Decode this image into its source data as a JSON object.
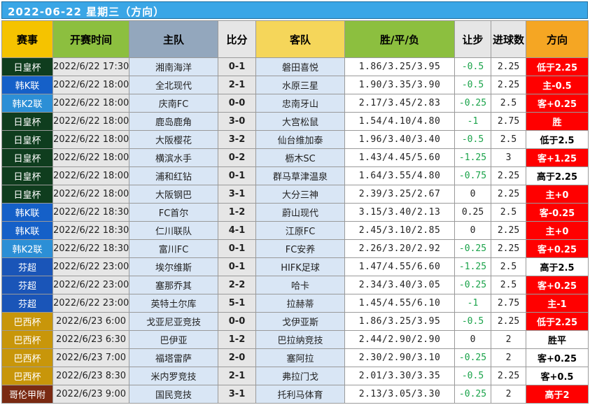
{
  "title": "2022-06-22 星期三（方向）",
  "colors": {
    "league_palette": {
      "日皇杯": "#0f3d1e",
      "韩K联": "#1560c8",
      "韩K2联": "#2c8fd6",
      "芬超": "#1a55b8",
      "巴西杯": "#c8960a",
      "哥伦甲附": "#7a2a12"
    },
    "handicap_negative": "#1aa34a",
    "handicap_other": "#222222",
    "direction_red": "#ff0000",
    "direction_white": "#ffffff"
  },
  "headers": {
    "league": "赛事",
    "time": "开赛时间",
    "home": "主队",
    "score": "比分",
    "away": "客队",
    "odds": "胜/平/负",
    "handicap": "让步",
    "goals": "进球数",
    "direction": "方向"
  },
  "rows": [
    {
      "league": "日皇杯",
      "time": "2022/6/22 17:30",
      "home": "湘南海洋",
      "score": "0-1",
      "away": "磐田喜悦",
      "odds": "1.86/3.25/3.95",
      "handicap": "-0.5",
      "goals": "2.25",
      "direction": "低于2.25",
      "dir_bg": "red"
    },
    {
      "league": "韩K联",
      "time": "2022/6/22 18:00",
      "home": "全北现代",
      "score": "2-1",
      "away": "水原三星",
      "odds": "1.90/3.35/3.90",
      "handicap": "-0.5",
      "goals": "2.25",
      "direction": "主-0.5",
      "dir_bg": "red"
    },
    {
      "league": "韩K2联",
      "time": "2022/6/22 18:00",
      "home": "庆南FC",
      "score": "0-0",
      "away": "忠南牙山",
      "odds": "2.17/3.45/2.83",
      "handicap": "-0.25",
      "goals": "2.5",
      "direction": "客+0.25",
      "dir_bg": "red"
    },
    {
      "league": "日皇杯",
      "time": "2022/6/22 18:00",
      "home": "鹿岛鹿角",
      "score": "3-0",
      "away": "大宫松鼠",
      "odds": "1.54/4.10/4.80",
      "handicap": "-1",
      "goals": "2.75",
      "direction": "胜",
      "dir_bg": "red"
    },
    {
      "league": "日皇杯",
      "time": "2022/6/22 18:00",
      "home": "大阪樱花",
      "score": "3-2",
      "away": "仙台维加泰",
      "odds": "1.96/3.40/3.40",
      "handicap": "-0.5",
      "goals": "2.5",
      "direction": "低于2.5",
      "dir_bg": "white"
    },
    {
      "league": "日皇杯",
      "time": "2022/6/22 18:00",
      "home": "横滨水手",
      "score": "0-2",
      "away": "枥木SC",
      "odds": "1.43/4.45/5.60",
      "handicap": "-1.25",
      "goals": "3",
      "direction": "客+1.25",
      "dir_bg": "red"
    },
    {
      "league": "日皇杯",
      "time": "2022/6/22 18:00",
      "home": "浦和红钻",
      "score": "0-1",
      "away": "群马草津温泉",
      "odds": "1.64/3.55/4.80",
      "handicap": "-0.75",
      "goals": "2.25",
      "direction": "高于2.25",
      "dir_bg": "white"
    },
    {
      "league": "日皇杯",
      "time": "2022/6/22 18:00",
      "home": "大阪钢巴",
      "score": "3-1",
      "away": "大分三神",
      "odds": "2.39/3.25/2.67",
      "handicap": "0",
      "goals": "2.25",
      "direction": "主+0",
      "dir_bg": "red"
    },
    {
      "league": "韩K联",
      "time": "2022/6/22 18:30",
      "home": "FC首尔",
      "score": "1-2",
      "away": "蔚山现代",
      "odds": "3.15/3.40/2.13",
      "handicap": "0.25",
      "goals": "2.5",
      "direction": "客-0.25",
      "dir_bg": "red"
    },
    {
      "league": "韩K联",
      "time": "2022/6/22 18:30",
      "home": "仁川联队",
      "score": "4-1",
      "away": "江原FC",
      "odds": "2.45/3.10/2.85",
      "handicap": "0",
      "goals": "2.25",
      "direction": "主+0",
      "dir_bg": "red"
    },
    {
      "league": "韩K2联",
      "time": "2022/6/22 18:30",
      "home": "富川FC",
      "score": "0-1",
      "away": "FC安养",
      "odds": "2.26/3.20/2.92",
      "handicap": "-0.25",
      "goals": "2.25",
      "direction": "客+0.25",
      "dir_bg": "red"
    },
    {
      "league": "芬超",
      "time": "2022/6/22 23:00",
      "home": "埃尔维斯",
      "score": "0-1",
      "away": "HIFK足球",
      "odds": "1.47/4.55/6.60",
      "handicap": "-1.25",
      "goals": "2.5",
      "direction": "高于2.5",
      "dir_bg": "white"
    },
    {
      "league": "芬超",
      "time": "2022/6/22 23:00",
      "home": "塞那乔其",
      "score": "2-2",
      "away": "哈卡",
      "odds": "2.34/3.40/3.05",
      "handicap": "-0.25",
      "goals": "2.5",
      "direction": "客+0.25",
      "dir_bg": "red"
    },
    {
      "league": "芬超",
      "time": "2022/6/22 23:00",
      "home": "英特土尔库",
      "score": "5-1",
      "away": "拉赫蒂",
      "odds": "1.45/4.55/6.10",
      "handicap": "-1",
      "goals": "2.75",
      "direction": "主-1",
      "dir_bg": "red"
    },
    {
      "league": "巴西杯",
      "time": "2022/6/23 6:00",
      "home": "戈亚尼亚竞技",
      "score": "0-0",
      "away": "戈伊亚斯",
      "odds": "1.86/3.25/3.95",
      "handicap": "-0.5",
      "goals": "2.25",
      "direction": "低于2.25",
      "dir_bg": "red"
    },
    {
      "league": "巴西杯",
      "time": "2022/6/23 6:30",
      "home": "巴伊亚",
      "score": "1-2",
      "away": "巴拉纳竞技",
      "odds": "2.44/2.90/2.90",
      "handicap": "0",
      "goals": "2",
      "direction": "胜平",
      "dir_bg": "white"
    },
    {
      "league": "巴西杯",
      "time": "2022/6/23 7:00",
      "home": "福塔雷萨",
      "score": "2-0",
      "away": "塞阿拉",
      "odds": "2.30/2.90/3.10",
      "handicap": "-0.25",
      "goals": "2",
      "direction": "客+0.25",
      "dir_bg": "white"
    },
    {
      "league": "巴西杯",
      "time": "2022/6/23 8:30",
      "home": "米内罗竞技",
      "score": "2-1",
      "away": "弗拉门戈",
      "odds": "2.01/3.30/3.35",
      "handicap": "-0.5",
      "goals": "2.25",
      "direction": "客+0.5",
      "dir_bg": "white"
    },
    {
      "league": "哥伦甲附",
      "time": "2022/6/23 9:00",
      "home": "国民竞技",
      "score": "3-1",
      "away": "托利马体育",
      "odds": "2.13/3.05/3.30",
      "handicap": "-0.25",
      "goals": "2",
      "direction": "高于2",
      "dir_bg": "red"
    }
  ]
}
